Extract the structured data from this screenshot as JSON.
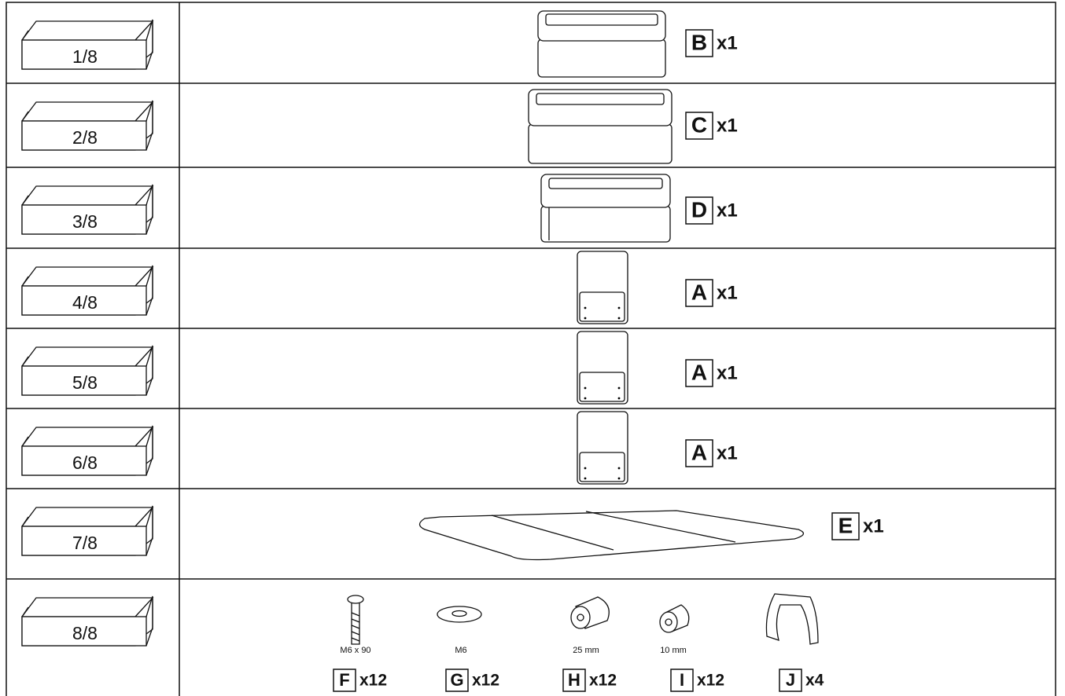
{
  "rows": [
    {
      "box": "1/8",
      "parts": [
        {
          "letter": "B",
          "quantity": "x1"
        }
      ]
    },
    {
      "box": "2/8",
      "parts": [
        {
          "letter": "C",
          "quantity": "x1"
        }
      ]
    },
    {
      "box": "3/8",
      "parts": [
        {
          "letter": "D",
          "quantity": "x1"
        }
      ]
    },
    {
      "box": "4/8",
      "parts": [
        {
          "letter": "A",
          "quantity": "x1"
        }
      ]
    },
    {
      "box": "5/8",
      "parts": [
        {
          "letter": "A",
          "quantity": "x1"
        }
      ]
    },
    {
      "box": "6/8",
      "parts": [
        {
          "letter": "A",
          "quantity": "x1"
        }
      ]
    },
    {
      "box": "7/8",
      "parts": [
        {
          "letter": "E",
          "quantity": "x1"
        }
      ]
    },
    {
      "box": "8/8",
      "parts": [
        {
          "size": "M6 x 90",
          "letter": "F",
          "quantity": "x12"
        },
        {
          "size": "M6",
          "letter": "G",
          "quantity": "x12"
        },
        {
          "size": "25 mm",
          "letter": "H",
          "quantity": "x12"
        },
        {
          "size": "10 mm",
          "letter": "I",
          "quantity": "x12"
        },
        {
          "letter": "J",
          "quantity": "x4"
        }
      ]
    }
  ]
}
